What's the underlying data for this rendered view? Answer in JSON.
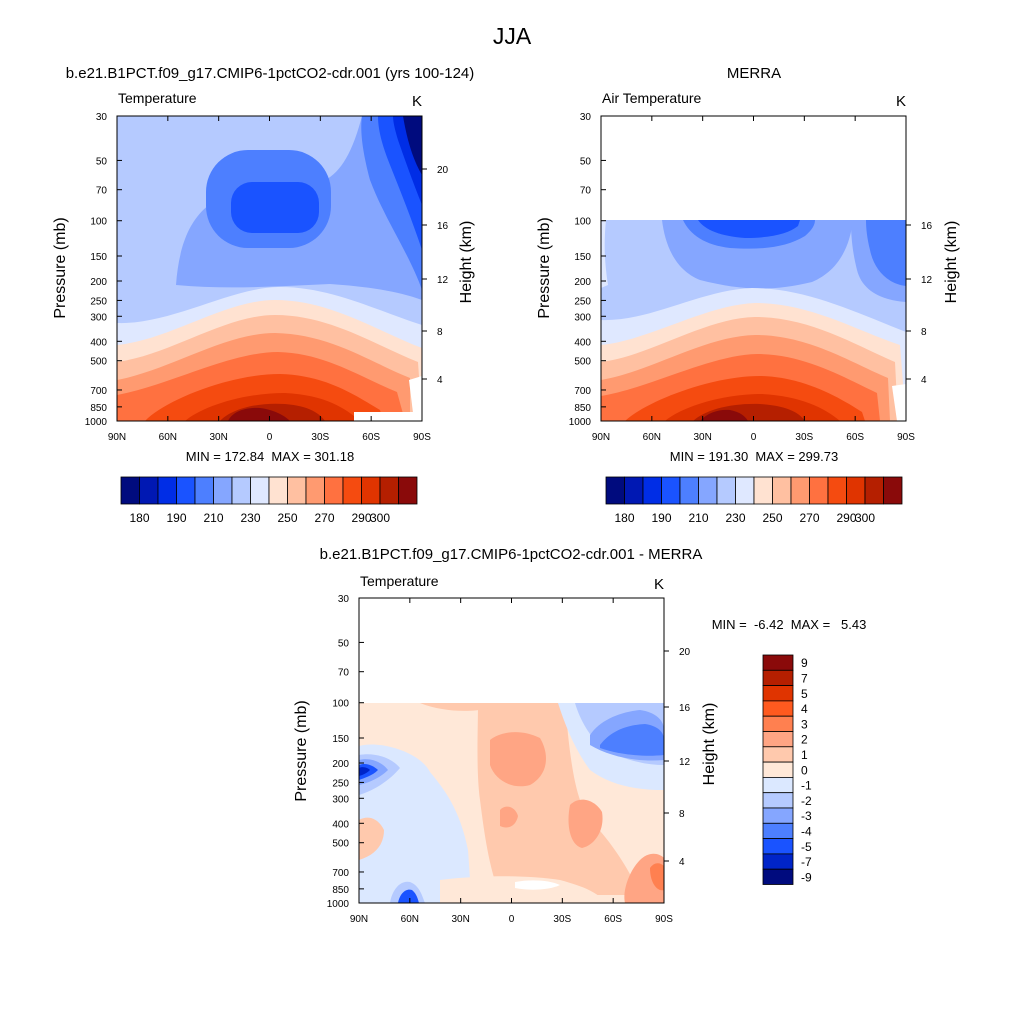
{
  "main_title": "JJA",
  "chart_data": [
    {
      "type": "heatmap",
      "id": "model",
      "subtitle": "b.e21.B1PCT.f09_g17.CMIP6-1pctCO2-cdr.001 (yrs 100-124)",
      "left_label": "Temperature",
      "units": "K",
      "ylabel": "Pressure (mb)",
      "ylabel_right": "Height (km)",
      "x_tick_labels": [
        "90N",
        "60N",
        "30N",
        "0",
        "30S",
        "60S",
        "90S"
      ],
      "x_values": [
        90,
        60,
        30,
        0,
        -30,
        -60,
        -90
      ],
      "y_tick_labels": [
        "30",
        "50",
        "70",
        "100",
        "150",
        "200",
        "250",
        "300",
        "400",
        "500",
        "700",
        "850",
        "1000"
      ],
      "y_values": [
        30,
        50,
        70,
        100,
        150,
        200,
        250,
        300,
        400,
        500,
        700,
        850,
        1000
      ],
      "y_right_tick_labels": [
        "20",
        "16",
        "12",
        "8",
        "4"
      ],
      "y_right_values": [
        20,
        16,
        12,
        8,
        4
      ],
      "y_scale": "log",
      "ylim": [
        1000,
        30
      ],
      "stats": {
        "min": 172.84,
        "max": 301.18
      },
      "stats_text": "MIN = 172.84  MAX = 301.18",
      "colorbar": {
        "levels": [
          180,
          190,
          200,
          210,
          220,
          230,
          240,
          250,
          260,
          270,
          280,
          290,
          300
        ],
        "labels": [
          "180",
          "190",
          "210",
          "230",
          "250",
          "270",
          "290",
          "300"
        ],
        "colors": [
          "#000b7e",
          "#0018b3",
          "#002de6",
          "#1a53ff",
          "#4d7fff",
          "#85a6ff",
          "#b5caff",
          "#dfe8ff",
          "#ffe2d1",
          "#ffc0a1",
          "#ff9a70",
          "#ff7140",
          "#f54b10",
          "#e03400",
          "#b51f00",
          "#8a0a0a"
        ]
      }
    },
    {
      "type": "heatmap",
      "id": "obs",
      "subtitle": "MERRA",
      "left_label": "Air Temperature",
      "units": "K",
      "ylabel": "Pressure (mb)",
      "ylabel_right": "Height (km)",
      "x_tick_labels": [
        "90N",
        "60N",
        "30N",
        "0",
        "30S",
        "60S",
        "90S"
      ],
      "x_values": [
        90,
        60,
        30,
        0,
        -30,
        -60,
        -90
      ],
      "y_tick_labels": [
        "30",
        "50",
        "70",
        "100",
        "150",
        "200",
        "250",
        "300",
        "400",
        "500",
        "700",
        "850",
        "1000"
      ],
      "y_values": [
        30,
        50,
        70,
        100,
        150,
        200,
        250,
        300,
        400,
        500,
        700,
        850,
        1000
      ],
      "y_right_tick_labels": [
        "16",
        "12",
        "8",
        "4"
      ],
      "y_right_values": [
        16,
        12,
        8,
        4
      ],
      "y_scale": "log",
      "ylim": [
        1000,
        30
      ],
      "data_top_pressure": 100,
      "stats": {
        "min": 191.3,
        "max": 299.73
      },
      "stats_text": "MIN = 191.30  MAX = 299.73",
      "colorbar": {
        "levels": [
          180,
          190,
          200,
          210,
          220,
          230,
          240,
          250,
          260,
          270,
          280,
          290,
          300
        ],
        "labels": [
          "180",
          "190",
          "210",
          "230",
          "250",
          "270",
          "290",
          "300"
        ],
        "colors": [
          "#000b7e",
          "#0018b3",
          "#002de6",
          "#1a53ff",
          "#4d7fff",
          "#85a6ff",
          "#b5caff",
          "#dfe8ff",
          "#ffe2d1",
          "#ffc0a1",
          "#ff9a70",
          "#ff7140",
          "#f54b10",
          "#e03400",
          "#b51f00",
          "#8a0a0a"
        ]
      }
    },
    {
      "type": "heatmap",
      "id": "diff",
      "subtitle": "b.e21.B1PCT.f09_g17.CMIP6-1pctCO2-cdr.001 - MERRA",
      "left_label": "Temperature",
      "units": "K",
      "ylabel": "Pressure (mb)",
      "ylabel_right": "Height (km)",
      "x_tick_labels": [
        "90N",
        "60N",
        "30N",
        "0",
        "30S",
        "60S",
        "90S"
      ],
      "x_values": [
        90,
        60,
        30,
        0,
        -30,
        -60,
        -90
      ],
      "y_tick_labels": [
        "30",
        "50",
        "70",
        "100",
        "150",
        "200",
        "250",
        "300",
        "400",
        "500",
        "700",
        "850",
        "1000"
      ],
      "y_values": [
        30,
        50,
        70,
        100,
        150,
        200,
        250,
        300,
        400,
        500,
        700,
        850,
        1000
      ],
      "y_right_tick_labels": [
        "20",
        "16",
        "12",
        "8",
        "4"
      ],
      "y_right_values": [
        20,
        16,
        12,
        8,
        4
      ],
      "y_scale": "log",
      "ylim": [
        1000,
        30
      ],
      "data_top_pressure": 100,
      "stats": {
        "min": -6.42,
        "max": 5.43
      },
      "stats_text": "MIN =  -6.42  MAX =   5.43",
      "colorbar": {
        "labels": [
          "9",
          "7",
          "5",
          "4",
          "3",
          "2",
          "1",
          "0",
          "-1",
          "-2",
          "-3",
          "-4",
          "-5",
          "-7",
          "-9"
        ],
        "colors": [
          "#8a0a0a",
          "#b51f00",
          "#e03400",
          "#ff5a1f",
          "#ff8050",
          "#ffa584",
          "#ffc9ad",
          "#ffe8d8",
          "#dbe8ff",
          "#b5caff",
          "#85a6ff",
          "#4d7fff",
          "#1a53ff",
          "#0024c8",
          "#000b7e"
        ]
      }
    }
  ]
}
